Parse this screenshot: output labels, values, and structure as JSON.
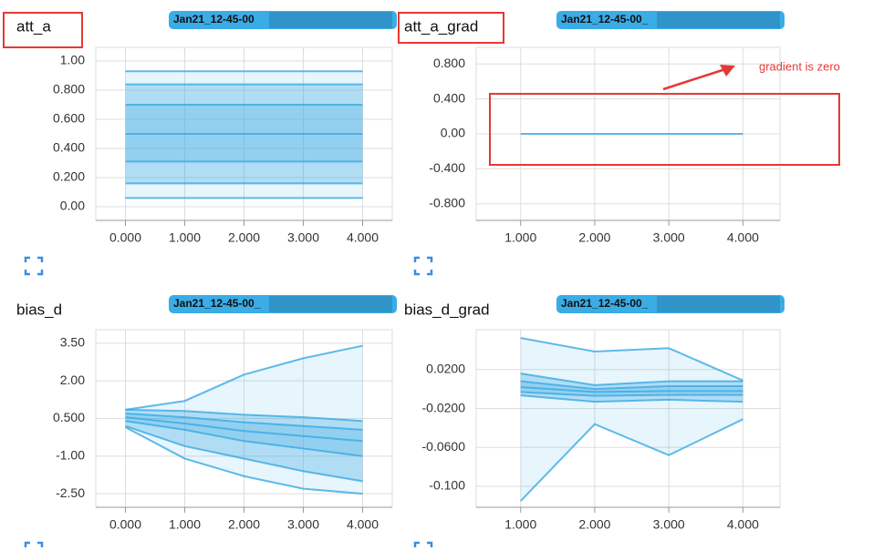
{
  "chart_data": [
    {
      "type": "distribution",
      "title": "att_a",
      "run_label": "Jan21_12-45-00",
      "color": "#3aa9e4",
      "x": [
        0,
        1,
        2,
        3,
        4
      ],
      "xlim": [
        -0.5,
        4.5
      ],
      "xticks": [
        {
          "value": 0,
          "label": "0.000"
        },
        {
          "value": 1,
          "label": "1.000"
        },
        {
          "value": 2,
          "label": "2.000"
        },
        {
          "value": 3,
          "label": "3.000"
        },
        {
          "value": 4,
          "label": "4.000"
        }
      ],
      "ylim": [
        -0.094,
        1.094
      ],
      "yticks": [
        {
          "value": 1.0,
          "label": "1.00"
        },
        {
          "value": 0.8,
          "label": "0.800"
        },
        {
          "value": 0.6,
          "label": "0.600"
        },
        {
          "value": 0.4,
          "label": "0.400"
        },
        {
          "value": 0.2,
          "label": "0.200"
        },
        {
          "value": 0,
          "label": "0.00"
        }
      ],
      "series": [
        {
          "values": [
            0.93,
            0.93,
            0.93,
            0.93,
            0.93
          ]
        },
        {
          "values": [
            0.84,
            0.84,
            0.84,
            0.84,
            0.84
          ]
        },
        {
          "values": [
            0.7,
            0.7,
            0.7,
            0.7,
            0.7
          ]
        },
        {
          "values": [
            0.5,
            0.5,
            0.5,
            0.5,
            0.5
          ]
        },
        {
          "values": [
            0.31,
            0.31,
            0.31,
            0.31,
            0.31
          ]
        },
        {
          "values": [
            0.16,
            0.16,
            0.16,
            0.16,
            0.16
          ]
        },
        {
          "values": [
            0.06,
            0.06,
            0.06,
            0.06,
            0.06
          ]
        }
      ]
    },
    {
      "type": "distribution",
      "title": "att_a_grad",
      "run_label": "Jan21_12-45-00_",
      "color": "#3aa9e4",
      "x": [
        1,
        2,
        3,
        4
      ],
      "xlim": [
        0.4,
        4.5
      ],
      "xticks": [
        {
          "value": 1,
          "label": "1.000"
        },
        {
          "value": 2,
          "label": "2.000"
        },
        {
          "value": 3,
          "label": "3.000"
        },
        {
          "value": 4,
          "label": "4.000"
        }
      ],
      "ylim": [
        -0.99,
        0.99
      ],
      "yticks": [
        {
          "value": 0.8,
          "label": "0.800"
        },
        {
          "value": 0.4,
          "label": "0.400"
        },
        {
          "value": 0,
          "label": "0.00"
        },
        {
          "value": -0.4,
          "label": "-0.400"
        },
        {
          "value": -0.8,
          "label": "-0.800"
        }
      ],
      "series": [
        {
          "values": [
            0,
            0,
            0,
            0
          ]
        }
      ],
      "annotation": "gradient is zero"
    },
    {
      "type": "distribution",
      "title": "bias_d",
      "run_label": "Jan21_12-45-00_",
      "color": "#3aa9e4",
      "x": [
        0,
        1,
        2,
        3,
        4
      ],
      "xlim": [
        -0.5,
        4.5
      ],
      "xticks": [
        {
          "value": 0,
          "label": "0.000"
        },
        {
          "value": 1,
          "label": "1.000"
        },
        {
          "value": 2,
          "label": "2.000"
        },
        {
          "value": 3,
          "label": "3.000"
        },
        {
          "value": 4,
          "label": "4.000"
        }
      ],
      "ylim": [
        -3.04,
        4.04
      ],
      "yticks": [
        {
          "value": 3.5,
          "label": "3.50"
        },
        {
          "value": 2,
          "label": "2.00"
        },
        {
          "value": 0.5,
          "label": "0.500"
        },
        {
          "value": -1,
          "label": "-1.00"
        },
        {
          "value": -2.5,
          "label": "-2.50"
        }
      ],
      "series": [
        {
          "values": [
            0.85,
            1.2,
            2.25,
            2.9,
            3.4
          ]
        },
        {
          "values": [
            0.85,
            0.8,
            0.65,
            0.55,
            0.4
          ]
        },
        {
          "values": [
            0.7,
            0.55,
            0.35,
            0.2,
            0.05
          ]
        },
        {
          "values": [
            0.55,
            0.3,
            0.0,
            -0.2,
            -0.4
          ]
        },
        {
          "values": [
            0.4,
            0.05,
            -0.4,
            -0.7,
            -1.0
          ]
        },
        {
          "values": [
            0.2,
            -0.6,
            -1.1,
            -1.6,
            -2.0
          ]
        },
        {
          "values": [
            0.15,
            -1.1,
            -1.8,
            -2.3,
            -2.5
          ]
        }
      ]
    },
    {
      "type": "distribution",
      "title": "bias_d_grad",
      "run_label": "Jan21_12-45-00_",
      "color": "#3aa9e4",
      "x": [
        1,
        2,
        3,
        4
      ],
      "xlim": [
        0.4,
        4.5
      ],
      "xticks": [
        {
          "value": 1,
          "label": "1.000"
        },
        {
          "value": 2,
          "label": "2.000"
        },
        {
          "value": 3,
          "label": "3.000"
        },
        {
          "value": 4,
          "label": "4.000"
        }
      ],
      "ylim": [
        -0.1215,
        0.061
      ],
      "yticks": [
        {
          "value": 0.02,
          "label": "0.0200"
        },
        {
          "value": -0.02,
          "label": "-0.0200"
        },
        {
          "value": -0.06,
          "label": "-0.0600"
        },
        {
          "value": -0.1,
          "label": "-0.100"
        }
      ],
      "series": [
        {
          "values": [
            0.0525,
            0.0385,
            0.042,
            0.0088
          ]
        },
        {
          "values": [
            0.016,
            0.004,
            0.008,
            0.008
          ]
        },
        {
          "values": [
            0.008,
            0.0,
            0.003,
            0.003
          ]
        },
        {
          "values": [
            0.002,
            -0.003,
            -0.002,
            -0.002
          ]
        },
        {
          "values": [
            -0.003,
            -0.007,
            -0.006,
            -0.006
          ]
        },
        {
          "values": [
            -0.0065,
            -0.013,
            -0.011,
            -0.013
          ]
        },
        {
          "values": [
            -0.115,
            -0.036,
            -0.068,
            -0.031
          ]
        }
      ]
    }
  ]
}
